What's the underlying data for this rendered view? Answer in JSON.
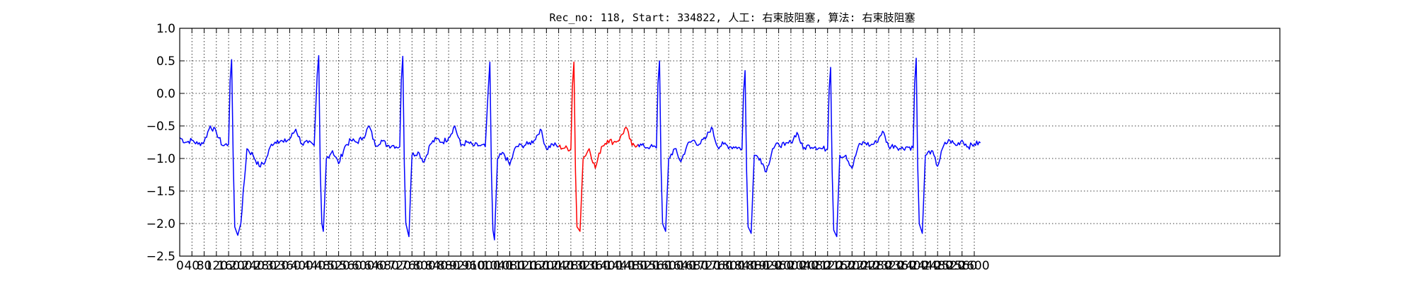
{
  "chart_data": {
    "type": "line",
    "title": "Rec_no: 118, Start: 334822, 人工: 右束肢阻塞, 算法: 右束肢阻塞",
    "xlabel": "",
    "ylabel": "",
    "xlim": [
      0,
      3600
    ],
    "ylim": [
      -2.5,
      1.0
    ],
    "grid": true,
    "line_color": "#0000ff",
    "highlight_color": "#ff0000",
    "highlight_range": [
      1240,
      1500
    ],
    "yticks": [
      "1.0",
      "0.5",
      "0.0",
      "−0.5",
      "−1.0",
      "−1.5",
      "−2.0",
      "−2.5"
    ],
    "ytick_values": [
      1.0,
      0.5,
      0.0,
      -0.5,
      -1.0,
      -1.5,
      -2.0,
      -2.5
    ],
    "xtick_values": [
      0,
      40,
      80,
      120,
      160,
      200,
      240,
      280,
      320,
      360,
      400,
      440,
      480,
      520,
      560,
      600,
      640,
      680,
      720,
      760,
      800,
      840,
      880,
      920,
      960,
      1000,
      1040,
      1080,
      1120,
      1160,
      1200,
      1240,
      1280,
      1320,
      1360,
      1400,
      1440,
      1480,
      1520,
      1560,
      1600,
      1640,
      1680,
      1720,
      1760,
      1800,
      1840,
      1880,
      1920,
      1960,
      2000,
      2040,
      2080,
      2120,
      2160,
      2200,
      2240,
      2280,
      2320,
      2360,
      2400,
      2440,
      2480,
      2520,
      2560,
      2600
    ],
    "xticks": [
      "0",
      "40",
      "80",
      "120",
      "160",
      "200",
      "240",
      "280",
      "320",
      "360",
      "400",
      "440",
      "480",
      "520",
      "560",
      "600",
      "640",
      "680",
      "720",
      "760",
      "800",
      "840",
      "880",
      "920",
      "960",
      "1000",
      "1040",
      "1080",
      "1120",
      "1160",
      "1200",
      "1240",
      "1280",
      "1320",
      "1360",
      "1400",
      "1440",
      "1480",
      "1520",
      "1560",
      "1600",
      "1640",
      "1680",
      "1720",
      "1760",
      "1800",
      "1840",
      "1880",
      "1920",
      "1960",
      "2000",
      "2040",
      "2080",
      "2120",
      "2160",
      "2200",
      "2240",
      "2280",
      "2320",
      "2360",
      "2400",
      "2440",
      "2480",
      "2520",
      "2560",
      "2600"
    ],
    "beats_x": [
      165,
      450,
      725,
      1010,
      1285,
      1560,
      1845,
      2120,
      2400
    ],
    "series": [
      {
        "x": [
          0,
          20,
          40,
          60,
          80,
          100,
          120,
          140,
          160,
          165,
          170,
          175,
          180,
          190,
          200,
          220,
          240,
          260,
          280,
          300,
          320,
          340,
          360,
          380,
          400,
          420,
          440,
          450,
          455,
          460,
          465,
          470,
          480,
          500,
          520,
          540,
          560,
          580,
          600,
          620,
          640,
          660,
          680,
          700,
          720,
          725,
          730,
          735,
          740,
          750,
          760,
          780,
          800,
          820,
          840,
          860,
          880,
          900,
          920,
          940,
          960,
          980,
          1000,
          1010,
          1015,
          1020,
          1025,
          1030,
          1040,
          1060,
          1080,
          1100,
          1120,
          1140,
          1160,
          1180,
          1200,
          1220,
          1240,
          1260,
          1280,
          1285,
          1290,
          1295,
          1300,
          1310,
          1320,
          1340,
          1360,
          1380,
          1400,
          1420,
          1440,
          1460,
          1480,
          1500,
          1520,
          1540,
          1560,
          1565,
          1570,
          1575,
          1580,
          1590,
          1600,
          1620,
          1640,
          1660,
          1680,
          1700,
          1720,
          1740,
          1760,
          1780,
          1800,
          1820,
          1840,
          1845,
          1850,
          1855,
          1860,
          1870,
          1880,
          1900,
          1920,
          1940,
          1960,
          1980,
          2000,
          2020,
          2040,
          2060,
          2080,
          2100,
          2120,
          2125,
          2130,
          2135,
          2140,
          2150,
          2160,
          2180,
          2200,
          2220,
          2240,
          2260,
          2280,
          2300,
          2320,
          2340,
          2360,
          2380,
          2400,
          2405,
          2410,
          2415,
          2420,
          2430,
          2440,
          2460,
          2480,
          2500,
          2520,
          2540,
          2560,
          2580,
          2600,
          2620
        ],
        "y": [
          -0.68,
          -0.75,
          -0.72,
          -0.78,
          -0.74,
          -0.5,
          -0.6,
          -0.8,
          -0.78,
          0.2,
          0.52,
          -1.0,
          -2.05,
          -2.18,
          -2.0,
          -0.85,
          -0.95,
          -1.12,
          -1.05,
          -0.78,
          -0.72,
          -0.75,
          -0.7,
          -0.55,
          -0.78,
          -0.76,
          -0.8,
          0.3,
          0.58,
          -1.2,
          -2.0,
          -2.12,
          -1.0,
          -0.88,
          -1.08,
          -0.82,
          -0.72,
          -0.75,
          -0.68,
          -0.5,
          -0.8,
          -0.72,
          -0.8,
          -0.8,
          -0.82,
          0.2,
          0.57,
          -1.1,
          -2.0,
          -2.2,
          -0.95,
          -0.9,
          -1.05,
          -0.78,
          -0.7,
          -0.75,
          -0.68,
          -0.5,
          -0.8,
          -0.75,
          -0.8,
          -0.8,
          -0.82,
          0.1,
          0.48,
          -1.2,
          -2.1,
          -2.25,
          -1.0,
          -0.92,
          -1.1,
          -0.82,
          -0.8,
          -0.78,
          -0.72,
          -0.55,
          -0.85,
          -0.78,
          -0.82,
          -0.84,
          -0.85,
          0.1,
          0.48,
          -1.2,
          -2.05,
          -2.12,
          -1.0,
          -0.85,
          -1.15,
          -0.82,
          -0.72,
          -0.75,
          -0.7,
          -0.52,
          -0.8,
          -0.78,
          -0.82,
          -0.82,
          -0.84,
          0.15,
          0.5,
          -1.1,
          -2.0,
          -2.12,
          -1.0,
          -0.85,
          -1.05,
          -0.8,
          -0.72,
          -0.78,
          -0.7,
          -0.52,
          -0.82,
          -0.78,
          -0.82,
          -0.82,
          -0.85,
          0.0,
          0.35,
          -1.2,
          -2.05,
          -2.15,
          -0.95,
          -1.0,
          -1.2,
          -0.85,
          -0.78,
          -0.8,
          -0.75,
          -0.6,
          -0.85,
          -0.8,
          -0.82,
          -0.85,
          -0.85,
          0.05,
          0.4,
          -1.2,
          -2.1,
          -2.2,
          -0.95,
          -0.95,
          -1.15,
          -0.82,
          -0.75,
          -0.8,
          -0.75,
          -0.58,
          -0.82,
          -0.8,
          -0.85,
          -0.82,
          -0.84,
          0.15,
          0.54,
          -1.1,
          -2.0,
          -2.15,
          -0.95,
          -0.88,
          -1.12,
          -0.8,
          -0.72,
          -0.8,
          -0.72,
          -0.82,
          -0.78,
          -0.76
        ]
      }
    ]
  }
}
